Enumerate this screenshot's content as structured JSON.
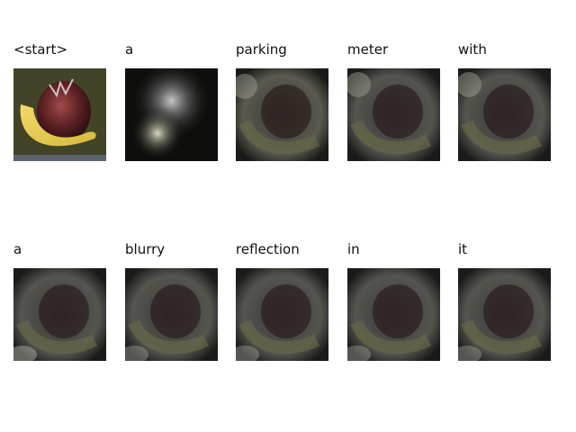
{
  "caption_words": [
    {
      "word": "<start>",
      "attention": "original"
    },
    {
      "word": "a",
      "attention": "center-left"
    },
    {
      "word": "parking",
      "attention": "diffuse"
    },
    {
      "word": "meter",
      "attention": "diffuse"
    },
    {
      "word": "with",
      "attention": "diffuse"
    },
    {
      "word": "a",
      "attention": "diffuse"
    },
    {
      "word": "blurry",
      "attention": "diffuse"
    },
    {
      "word": "reflection",
      "attention": "diffuse"
    },
    {
      "word": "in",
      "attention": "diffuse"
    },
    {
      "word": "it",
      "attention": "diffuse"
    }
  ]
}
